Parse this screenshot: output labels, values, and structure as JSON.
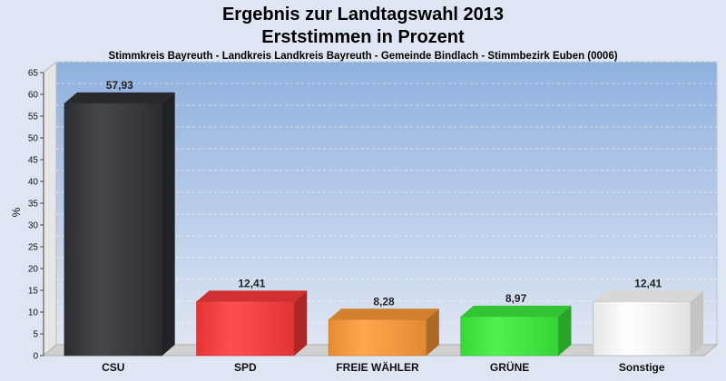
{
  "chart_data": {
    "type": "bar",
    "title": "Ergebnis zur Landtagswahl 2013",
    "title_line2": "Erststimmen in Prozent",
    "subtitle": "Stimmkreis Bayreuth - Landkreis Landkreis Bayreuth - Gemeinde Bindlach - Stimmbezirk Euben (0006)",
    "ylabel": "%",
    "xlabel": "",
    "ylim": [
      0,
      65
    ],
    "yticks": [
      0,
      5,
      10,
      15,
      20,
      25,
      30,
      35,
      40,
      45,
      50,
      55,
      60,
      65
    ],
    "grid": true,
    "categories": [
      "CSU",
      "SPD",
      "FREIE WÄHLER",
      "GRÜNE",
      "Sonstige"
    ],
    "values": [
      57.93,
      12.41,
      8.28,
      8.97,
      12.41
    ],
    "value_labels": [
      "57,93",
      "12,41",
      "8,28",
      "8,97",
      "12,41"
    ],
    "colors": [
      "#303236",
      "#ff3a3a",
      "#ff9c38",
      "#3cf03c",
      "#ffffff"
    ],
    "plot_background": [
      "#8fb0de",
      "#dfe6f3"
    ]
  }
}
